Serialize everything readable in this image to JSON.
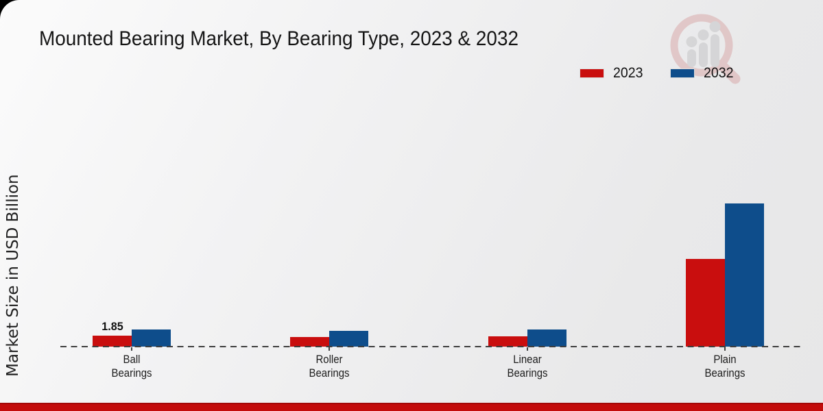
{
  "chart_data": {
    "type": "bar",
    "title": "Mounted Bearing Market, By Bearing Type, 2023 & 2032",
    "ylabel": "Market Size in USD Billion",
    "xlabel": "",
    "categories": [
      "Ball Bearings",
      "Roller Bearings",
      "Linear Bearings",
      "Plain Bearings"
    ],
    "series": [
      {
        "name": "2023",
        "color": "#c90e0e",
        "values": [
          1.85,
          1.7,
          1.75,
          15.1
        ]
      },
      {
        "name": "2032",
        "color": "#0e4d8b",
        "values": [
          2.9,
          2.75,
          2.9,
          24.6
        ]
      }
    ],
    "value_labels": [
      {
        "series_index": 0,
        "category_index": 0,
        "text": "1.85"
      }
    ],
    "legend_position": "top-right",
    "grid": "off",
    "axis_line_style": "dashed"
  },
  "branding": {
    "watermark_icon": "magnifier-growth-chart-logo",
    "accent_bar_color": "#c30b0b",
    "watermark_ring_color": "#d9abab",
    "watermark_bar_color": "#c5c5c7"
  }
}
